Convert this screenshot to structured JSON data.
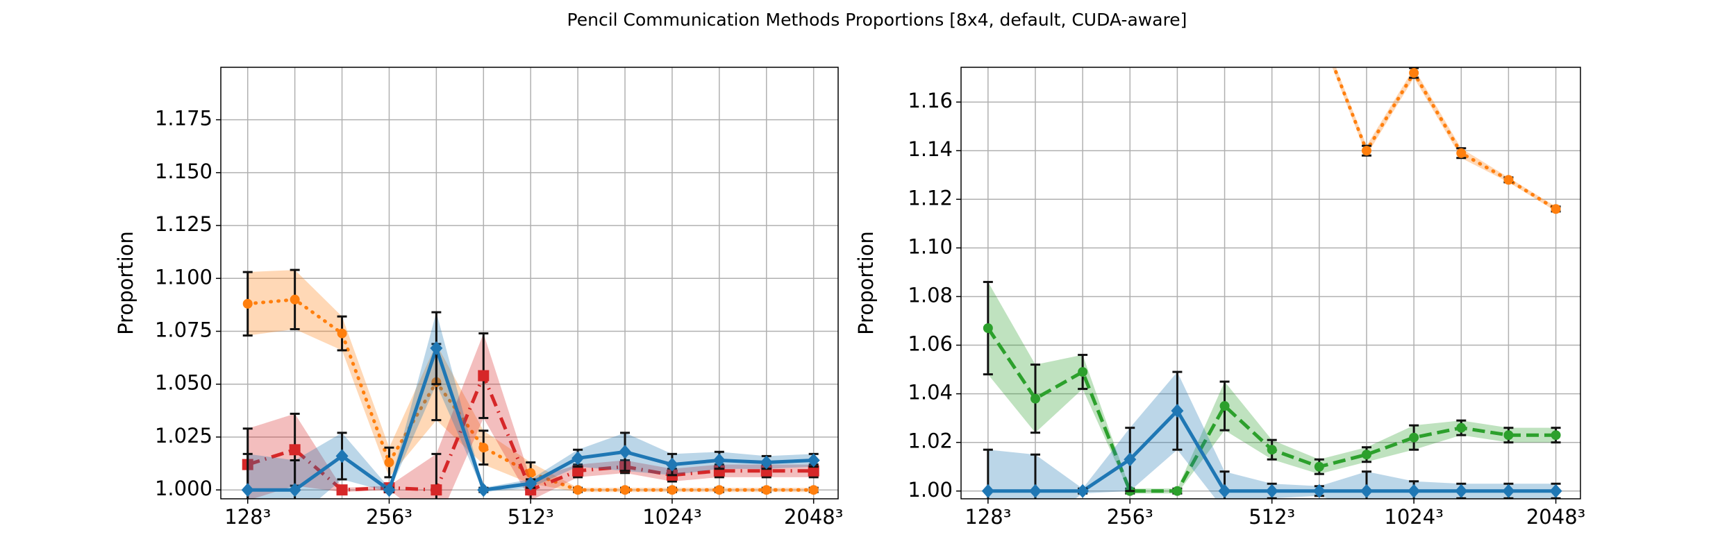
{
  "title": "Pencil Communication Methods Proportions [8x4, default, CUDA-aware]",
  "chart_data": [
    {
      "type": "line",
      "y_label": "Proportion",
      "categories": [
        "128³",
        null,
        null,
        "256³",
        null,
        null,
        "512³",
        null,
        null,
        "1024³",
        null,
        null,
        "2048³"
      ],
      "ylim": [
        0.9958,
        1.1998
      ],
      "yticks": [
        {
          "value": 1.0,
          "label": "1.000"
        },
        {
          "value": 1.025,
          "label": "1.025"
        },
        {
          "value": 1.05,
          "label": "1.050"
        },
        {
          "value": 1.075,
          "label": "1.075"
        },
        {
          "value": 1.1,
          "label": "1.100"
        },
        {
          "value": 1.125,
          "label": "1.125"
        },
        {
          "value": 1.15,
          "label": "1.150"
        },
        {
          "value": 1.175,
          "label": "1.175"
        }
      ],
      "grid": true,
      "series": [
        {
          "color": "#ff7f0e",
          "dash": "dotted",
          "marker": "circle",
          "values": [
            1.088,
            1.09,
            1.074,
            1.013,
            1.051,
            1.02,
            1.008,
            1.0,
            1.0,
            1.0,
            1.0,
            1.0,
            1.0
          ],
          "errors": [
            0.015,
            0.014,
            0.008,
            0.007,
            0.018,
            0.008,
            0.005,
            0.001,
            0.001,
            0.001,
            0.001,
            0.001,
            0.001
          ]
        },
        {
          "color": "#d62728",
          "dash": "dashdot",
          "marker": "square",
          "values": [
            1.012,
            1.019,
            1.0,
            1.001,
            1.0,
            1.054,
            1.0,
            1.009,
            1.011,
            1.007,
            1.009,
            1.009,
            1.009
          ],
          "errors": [
            0.017,
            0.017,
            0.001,
            0.001,
            0.017,
            0.02,
            0.005,
            0.003,
            0.003,
            0.003,
            0.003,
            0.003,
            0.003
          ]
        },
        {
          "color": "#1f77b4",
          "dash": "solid",
          "marker": "diamond",
          "values": [
            1.0,
            1.0,
            1.016,
            1.0,
            1.067,
            1.0,
            1.003,
            1.015,
            1.018,
            1.012,
            1.014,
            1.013,
            1.014
          ],
          "errors": [
            0.017,
            0.014,
            0.011,
            0.001,
            0.017,
            0.001,
            0.002,
            0.004,
            0.009,
            0.005,
            0.004,
            0.003,
            0.003
          ]
        }
      ]
    },
    {
      "type": "line",
      "y_label": "Proportion",
      "categories": [
        "128³",
        null,
        null,
        "256³",
        null,
        null,
        "512³",
        null,
        null,
        "1024³",
        null,
        null,
        "2048³"
      ],
      "ylim": [
        0.9968,
        1.1743
      ],
      "yticks": [
        {
          "value": 1.0,
          "label": "1.00"
        },
        {
          "value": 1.02,
          "label": "1.02"
        },
        {
          "value": 1.04,
          "label": "1.04"
        },
        {
          "value": 1.06,
          "label": "1.06"
        },
        {
          "value": 1.08,
          "label": "1.08"
        },
        {
          "value": 1.1,
          "label": "1.10"
        },
        {
          "value": 1.12,
          "label": "1.12"
        },
        {
          "value": 1.14,
          "label": "1.14"
        },
        {
          "value": 1.16,
          "label": "1.16"
        }
      ],
      "grid": true,
      "series": [
        {
          "color": "#ff7f0e",
          "dash": "dotted",
          "marker": "circle",
          "values": [
            null,
            null,
            null,
            null,
            null,
            null,
            null,
            1.19,
            1.14,
            1.172,
            1.139,
            1.128,
            1.116
          ],
          "errors": [
            null,
            null,
            null,
            null,
            null,
            null,
            null,
            0.002,
            0.002,
            0.002,
            0.002,
            0.001,
            0.001
          ]
        },
        {
          "color": "#2ca02c",
          "dash": "dashed",
          "marker": "circle",
          "values": [
            1.067,
            1.038,
            1.049,
            1.0,
            1.0,
            1.035,
            1.017,
            1.01,
            1.015,
            1.022,
            1.026,
            1.023,
            1.023
          ],
          "errors": [
            0.019,
            0.014,
            0.007,
            0.001,
            0.001,
            0.01,
            0.004,
            0.003,
            0.003,
            0.005,
            0.003,
            0.003,
            0.003
          ]
        },
        {
          "color": "#1f77b4",
          "dash": "solid",
          "marker": "diamond",
          "values": [
            1.0,
            1.0,
            1.0,
            1.013,
            1.033,
            1.0,
            1.0,
            1.0,
            1.0,
            1.0,
            1.0,
            1.0,
            1.0
          ],
          "errors": [
            0.017,
            0.015,
            0.001,
            0.013,
            0.016,
            0.008,
            0.003,
            0.002,
            0.008,
            0.004,
            0.003,
            0.003,
            0.003
          ]
        }
      ]
    }
  ]
}
